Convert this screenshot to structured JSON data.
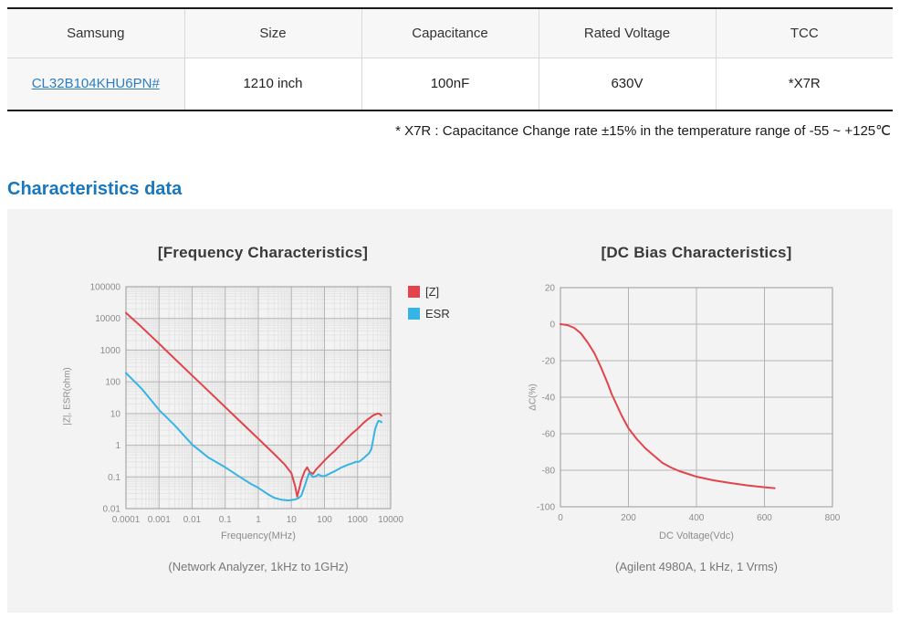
{
  "table": {
    "headers": [
      "Samsung",
      "Size",
      "Capacitance",
      "Rated Voltage",
      "TCC"
    ],
    "row": {
      "part_number": "CL32B104KHU6PN#",
      "size": "1210 inch",
      "capacitance": "100nF",
      "rated_voltage": "630V",
      "tcc": "*X7R"
    }
  },
  "note": "* X7R : Capacitance Change rate ±15% in the temperature range of -55 ~ +125℃",
  "section_title": "Characteristics data",
  "chart_data": [
    {
      "type": "line",
      "title": "[Frequency Characteristics]",
      "xlabel": "Frequency(MHz)",
      "ylabel": "|Z|, ESR(ohm)",
      "caption": "(Network Analyzer, 1kHz to 1GHz)",
      "xscale": "log",
      "yscale": "log",
      "xlim": [
        0.0001,
        10000
      ],
      "ylim": [
        0.01,
        100000
      ],
      "xticks": [
        0.0001,
        0.001,
        0.01,
        0.1,
        1,
        10,
        100,
        1000,
        10000
      ],
      "xtick_labels": [
        "0.0001",
        "0.001",
        "0.01",
        "0.1",
        "1",
        "10",
        "100",
        "1000",
        "10000"
      ],
      "yticks": [
        0.01,
        0.1,
        1,
        10,
        100,
        1000,
        10000,
        100000
      ],
      "ytick_labels": [
        "0.01",
        "0.1",
        "1",
        "10",
        "100",
        "1000",
        "10000",
        "100000"
      ],
      "grid": "log-minor-and-major",
      "grid_minor_color": "#e4e4e4",
      "grid_major_color": "#b4b4b4",
      "frame_color": "#9a9a9a",
      "tick_color": "#8c8c8c",
      "legend_position": "right-of-plot-top",
      "margins": {
        "t": 8,
        "r": 20,
        "b": 30,
        "l": 55
      },
      "series": [
        {
          "name": "[Z]",
          "color": "#e2434c",
          "points": [
            [
              0.0001,
              15000
            ],
            [
              0.0003,
              5300
            ],
            [
              0.001,
              1590
            ],
            [
              0.003,
              530
            ],
            [
              0.01,
              159
            ],
            [
              0.03,
              53
            ],
            [
              0.1,
              15.9
            ],
            [
              0.3,
              5.3
            ],
            [
              1,
              1.6
            ],
            [
              3,
              0.53
            ],
            [
              6,
              0.26
            ],
            [
              10,
              0.13
            ],
            [
              13,
              0.05
            ],
            [
              15,
              0.024
            ],
            [
              17,
              0.04
            ],
            [
              20,
              0.08
            ],
            [
              25,
              0.15
            ],
            [
              30,
              0.2
            ],
            [
              36,
              0.14
            ],
            [
              45,
              0.125
            ],
            [
              55,
              0.17
            ],
            [
              70,
              0.22
            ],
            [
              100,
              0.33
            ],
            [
              150,
              0.5
            ],
            [
              200,
              0.65
            ],
            [
              300,
              1.0
            ],
            [
              500,
              1.7
            ],
            [
              700,
              2.4
            ],
            [
              1000,
              3.3
            ],
            [
              1500,
              5
            ],
            [
              2000,
              6.5
            ],
            [
              3000,
              8.8
            ],
            [
              4000,
              10
            ],
            [
              4600,
              9.8
            ],
            [
              5200,
              8.6
            ]
          ]
        },
        {
          "name": "ESR",
          "color": "#36b4e5",
          "points": [
            [
              0.0001,
              190
            ],
            [
              0.0003,
              60
            ],
            [
              0.001,
              13
            ],
            [
              0.003,
              4.2
            ],
            [
              0.01,
              1.05
            ],
            [
              0.03,
              0.42
            ],
            [
              0.1,
              0.2
            ],
            [
              0.3,
              0.095
            ],
            [
              0.6,
              0.06
            ],
            [
              1,
              0.045
            ],
            [
              2,
              0.028
            ],
            [
              3,
              0.022
            ],
            [
              5,
              0.019
            ],
            [
              8,
              0.018
            ],
            [
              12,
              0.019
            ],
            [
              16,
              0.021
            ],
            [
              20,
              0.026
            ],
            [
              25,
              0.05
            ],
            [
              30,
              0.09
            ],
            [
              34,
              0.13
            ],
            [
              38,
              0.12
            ],
            [
              45,
              0.1
            ],
            [
              55,
              0.105
            ],
            [
              65,
              0.12
            ],
            [
              75,
              0.11
            ],
            [
              90,
              0.105
            ],
            [
              110,
              0.11
            ],
            [
              150,
              0.13
            ],
            [
              200,
              0.15
            ],
            [
              300,
              0.19
            ],
            [
              500,
              0.24
            ],
            [
              700,
              0.27
            ],
            [
              900,
              0.3
            ],
            [
              1100,
              0.3
            ],
            [
              1400,
              0.36
            ],
            [
              1800,
              0.46
            ],
            [
              2200,
              0.55
            ],
            [
              2600,
              0.75
            ],
            [
              3000,
              1.6
            ],
            [
              3400,
              3.2
            ],
            [
              3800,
              4.6
            ],
            [
              4300,
              5.9
            ],
            [
              4800,
              5.7
            ],
            [
              5300,
              5.3
            ]
          ]
        }
      ]
    },
    {
      "type": "line",
      "title": "[DC Bias Characteristics]",
      "xlabel": "DC Voltage(Vdc)",
      "ylabel": "ΔC(%)",
      "caption": "(Agilent 4980A, 1 kHz, 1 Vrms)",
      "xscale": "linear",
      "yscale": "linear",
      "xlim": [
        0,
        800
      ],
      "ylim": [
        -100,
        20
      ],
      "xticks": [
        0,
        200,
        400,
        600,
        800
      ],
      "xtick_labels": [
        "0",
        "200",
        "400",
        "600",
        "800"
      ],
      "yticks": [
        20,
        0,
        -20,
        -40,
        -60,
        -80,
        -100
      ],
      "ytick_labels": [
        "20",
        "0",
        "-20",
        "-40",
        "-60",
        "-80",
        "-100"
      ],
      "grid": "major-only",
      "grid_minor_color": "#e4e4e4",
      "grid_major_color": "#b4b4b4",
      "frame_color": "#9a9a9a",
      "tick_color": "#8c8c8c",
      "legend_position": "none",
      "margins": {
        "t": 8,
        "r": 12,
        "b": 30,
        "l": 55
      },
      "series": [
        {
          "name": "ΔC",
          "color": "#e2434c",
          "points": [
            [
              0,
              0
            ],
            [
              20,
              -0.5
            ],
            [
              40,
              -2
            ],
            [
              60,
              -5
            ],
            [
              80,
              -10
            ],
            [
              100,
              -16
            ],
            [
              120,
              -24
            ],
            [
              140,
              -33
            ],
            [
              150,
              -38
            ],
            [
              160,
              -42
            ],
            [
              180,
              -50
            ],
            [
              200,
              -57
            ],
            [
              225,
              -63
            ],
            [
              250,
              -68
            ],
            [
              275,
              -72
            ],
            [
              300,
              -76
            ],
            [
              325,
              -78.5
            ],
            [
              350,
              -80.5
            ],
            [
              375,
              -82
            ],
            [
              400,
              -83.5
            ],
            [
              450,
              -85.5
            ],
            [
              500,
              -87
            ],
            [
              550,
              -88.3
            ],
            [
              600,
              -89.3
            ],
            [
              630,
              -89.8
            ]
          ]
        }
      ]
    }
  ]
}
